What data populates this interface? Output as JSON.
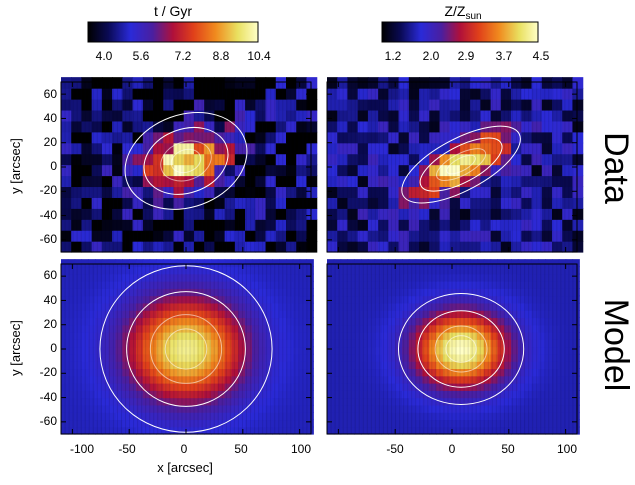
{
  "chart_data": {
    "type": "heatmap",
    "colorbars": [
      {
        "title": "t / Gyr",
        "ticks": [
          "4.0",
          "5.6",
          "7.2",
          "8.8",
          "10.4"
        ],
        "range": [
          4.0,
          10.4
        ]
      },
      {
        "title": "Z/Z",
        "title_sub": "sun",
        "ticks": [
          "1.2",
          "2.0",
          "2.9",
          "3.7",
          "4.5"
        ],
        "range": [
          1.2,
          4.5
        ]
      }
    ],
    "row_labels": [
      "Data",
      "Model"
    ],
    "xlabel": "x [arcsec]",
    "ylabel": "y [arcsec]",
    "xlim": [
      -110,
      110
    ],
    "ylim": [
      -70,
      70
    ],
    "xticks": [
      "-100",
      "-50",
      "0",
      "50",
      "100"
    ],
    "yticks": [
      "60",
      "40",
      "20",
      "0",
      "-20",
      "-40",
      "-60"
    ],
    "panels": [
      {
        "row": "Data",
        "quantity": "age",
        "center_value": 10.4,
        "outer_value": 4.5,
        "noisy": true
      },
      {
        "row": "Data",
        "quantity": "metallicity",
        "center_value": 4.5,
        "outer_value": 1.8,
        "noisy": true
      },
      {
        "row": "Model",
        "quantity": "age",
        "center_value": 10.0,
        "outer_value": 5.4,
        "noisy": false
      },
      {
        "row": "Model",
        "quantity": "metallicity",
        "center_value": 4.5,
        "outer_value": 1.9,
        "noisy": false
      }
    ]
  }
}
